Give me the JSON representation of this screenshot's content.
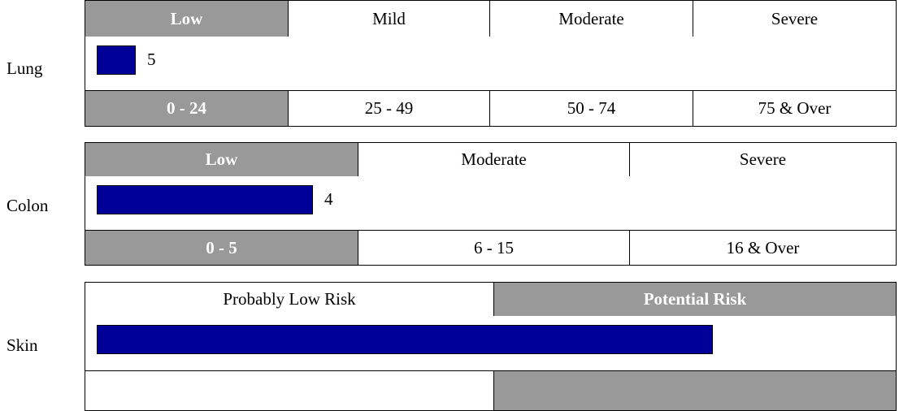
{
  "colors": {
    "highlight": "#999999",
    "bar": "#000099",
    "border": "#000000"
  },
  "chart_data": [
    {
      "type": "bar",
      "orientation": "horizontal",
      "label": "Lung",
      "value": 5,
      "value_label": "5",
      "xlim": [
        0,
        100
      ],
      "categories": [
        "Low",
        "Mild",
        "Moderate",
        "Severe"
      ],
      "ranges": [
        "0 - 24",
        "25 - 49",
        "50 - 74",
        "75 & Over"
      ],
      "highlighted_category": "Low"
    },
    {
      "type": "bar",
      "orientation": "horizontal",
      "label": "Colon",
      "value": 4,
      "value_label": "4",
      "xlim": [
        0,
        16
      ],
      "categories": [
        "Low",
        "Moderate",
        "Severe"
      ],
      "ranges": [
        "0 - 5",
        "6 - 15",
        "16 & Over"
      ],
      "highlighted_category": "Low"
    },
    {
      "type": "bar",
      "orientation": "horizontal",
      "label": "Skin",
      "xlim": [
        0,
        1
      ],
      "value": 0.76,
      "categories": [
        "Probably Low Risk",
        "Potential Risk"
      ],
      "ranges": [
        "",
        ""
      ],
      "highlighted_category": "Potential Risk"
    }
  ]
}
